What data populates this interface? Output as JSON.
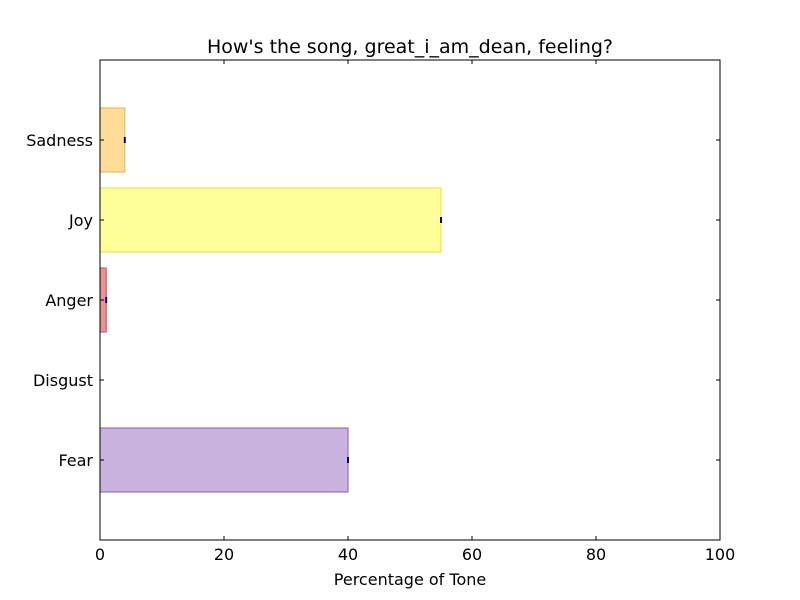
{
  "chart_data": {
    "type": "bar",
    "orientation": "horizontal",
    "title": "How's the song, great_i_am_dean, feeling?",
    "xlabel": "Percentage of Tone",
    "ylabel": "",
    "xlim": [
      0,
      100
    ],
    "x_ticks": [
      0,
      20,
      40,
      60,
      80,
      100
    ],
    "grid": false,
    "categories": [
      "Fear",
      "Disgust",
      "Anger",
      "Joy",
      "Sadness"
    ],
    "values": [
      40,
      0,
      1,
      55,
      4
    ],
    "colors": [
      "#9467bd",
      "#8c564b",
      "#d62728",
      "#ffff33",
      "#ffbb33"
    ],
    "edge_colors": [
      "#8a5cb5",
      "#7a4a3f",
      "#c9484d",
      "#e6e63a",
      "#f0b040"
    ],
    "value_marker_color": "#00008b"
  }
}
